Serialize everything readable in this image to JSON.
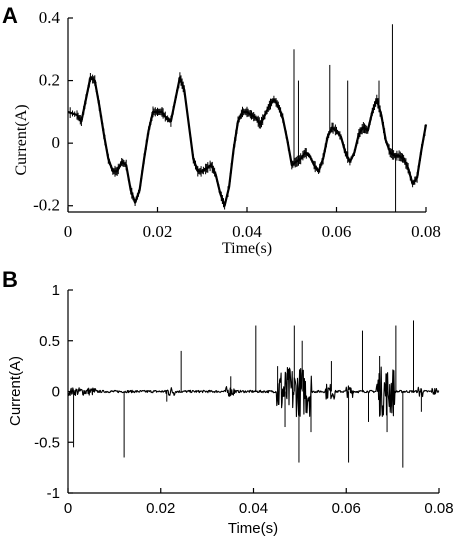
{
  "chart_data": [
    {
      "panel": "A",
      "type": "line",
      "xlabel": "Time(s)",
      "ylabel": "Current(A)",
      "xlim": [
        0,
        0.08
      ],
      "ylim": [
        -0.22,
        0.4
      ],
      "xticks": [
        0,
        0.02,
        0.04,
        0.06,
        0.08
      ],
      "xtick_labels": [
        "0",
        "0.02",
        "0.04",
        "0.06",
        "0.08"
      ],
      "yticks": [
        -0.2,
        0,
        0.2,
        0.4
      ],
      "ytick_labels": [
        "-0.2",
        "0",
        "0.2",
        "0.4"
      ],
      "grid": false,
      "series": [
        {
          "x": [
            0,
            0.002,
            0.003,
            0.004,
            0.005,
            0.006,
            0.007,
            0.008,
            0.009,
            0.01,
            0.011,
            0.012,
            0.013,
            0.014,
            0.015,
            0.016,
            0.017,
            0.018,
            0.019,
            0.02,
            0.021,
            0.022,
            0.023,
            0.024,
            0.025,
            0.026,
            0.027,
            0.028,
            0.029,
            0.03,
            0.031,
            0.032,
            0.033,
            0.034,
            0.035,
            0.036,
            0.037,
            0.038,
            0.039,
            0.04,
            0.041,
            0.042,
            0.043,
            0.044,
            0.045,
            0.046,
            0.047,
            0.048,
            0.049,
            0.05,
            0.051,
            0.052,
            0.053,
            0.054,
            0.055,
            0.056,
            0.057,
            0.058,
            0.059,
            0.06,
            0.061,
            0.062,
            0.063,
            0.064,
            0.065,
            0.066,
            0.067,
            0.068,
            0.069,
            0.07,
            0.071,
            0.072,
            0.073,
            0.074,
            0.075,
            0.076,
            0.077,
            0.078,
            0.079,
            0.08
          ],
          "y": [
            0.1,
            0.09,
            0.07,
            0.14,
            0.21,
            0.2,
            0.12,
            0.03,
            -0.05,
            -0.09,
            -0.09,
            -0.06,
            -0.07,
            -0.15,
            -0.19,
            -0.15,
            -0.05,
            0.04,
            0.1,
            0.1,
            0.1,
            0.08,
            0.07,
            0.14,
            0.21,
            0.17,
            0.06,
            -0.05,
            -0.09,
            -0.09,
            -0.08,
            -0.07,
            -0.1,
            -0.16,
            -0.2,
            -0.14,
            -0.02,
            0.07,
            0.1,
            0.1,
            0.09,
            0.08,
            0.06,
            0.09,
            0.12,
            0.14,
            0.12,
            0.08,
            0.01,
            -0.07,
            -0.06,
            -0.05,
            -0.03,
            -0.04,
            -0.07,
            -0.09,
            -0.05,
            0.02,
            0.05,
            0.04,
            0.02,
            -0.03,
            -0.06,
            -0.03,
            0.03,
            0.05,
            0.04,
            0.1,
            0.14,
            0.09,
            0.01,
            -0.03,
            -0.04,
            -0.04,
            -0.05,
            -0.08,
            -0.13,
            -0.11,
            -0.02,
            0.06
          ]
        }
      ],
      "spikes": [
        {
          "x": 0.0505,
          "y": 0.3
        },
        {
          "x": 0.0515,
          "y": 0.2
        },
        {
          "x": 0.0585,
          "y": 0.25
        },
        {
          "x": 0.0625,
          "y": 0.2
        },
        {
          "x": 0.0695,
          "y": 0.2
        },
        {
          "x": 0.0725,
          "y": 0.38
        },
        {
          "x": 0.0732,
          "y": -0.22
        }
      ]
    },
    {
      "panel": "B",
      "type": "line",
      "xlabel": "Time(s)",
      "ylabel": "Current(A)",
      "xlim": [
        0,
        0.08
      ],
      "ylim": [
        -1,
        1
      ],
      "xticks": [
        0,
        0.02,
        0.04,
        0.06,
        0.08
      ],
      "xtick_labels": [
        "0",
        "0.02",
        "0.04",
        "0.06",
        "0.08"
      ],
      "yticks": [
        -1,
        -0.5,
        0,
        0.5,
        1
      ],
      "ytick_labels": [
        "-1",
        "-0.5",
        "0",
        "0.5",
        "1"
      ],
      "grid": false,
      "spikes": [
        {
          "x": 0.0012,
          "y": -0.55
        },
        {
          "x": 0.0121,
          "y": -0.65
        },
        {
          "x": 0.0213,
          "y": -0.1
        },
        {
          "x": 0.0244,
          "y": 0.4
        },
        {
          "x": 0.0351,
          "y": 0.15
        },
        {
          "x": 0.0405,
          "y": 0.65
        },
        {
          "x": 0.0452,
          "y": 0.25
        },
        {
          "x": 0.0468,
          "y": -0.35
        },
        {
          "x": 0.0488,
          "y": 0.65
        },
        {
          "x": 0.0498,
          "y": -0.7
        },
        {
          "x": 0.0505,
          "y": 0.5
        },
        {
          "x": 0.0524,
          "y": -0.4
        },
        {
          "x": 0.0568,
          "y": 0.3
        },
        {
          "x": 0.0605,
          "y": -0.7
        },
        {
          "x": 0.0635,
          "y": 0.6
        },
        {
          "x": 0.0648,
          "y": -0.3
        },
        {
          "x": 0.0672,
          "y": 0.35
        },
        {
          "x": 0.0688,
          "y": -0.4
        },
        {
          "x": 0.0707,
          "y": 0.65
        },
        {
          "x": 0.0722,
          "y": -0.75
        },
        {
          "x": 0.0745,
          "y": 0.7
        },
        {
          "x": 0.0762,
          "y": -0.2
        }
      ],
      "bursts": [
        {
          "x0": 0,
          "x1": 0.006,
          "amp": 0.04
        },
        {
          "x0": 0.021,
          "x1": 0.023,
          "amp": 0.05
        },
        {
          "x0": 0.034,
          "x1": 0.036,
          "amp": 0.05
        },
        {
          "x0": 0.045,
          "x1": 0.0525,
          "amp": 0.25
        },
        {
          "x0": 0.0555,
          "x1": 0.0575,
          "amp": 0.08
        },
        {
          "x0": 0.06,
          "x1": 0.0615,
          "amp": 0.06
        },
        {
          "x0": 0.0665,
          "x1": 0.0705,
          "amp": 0.25
        },
        {
          "x0": 0.0755,
          "x1": 0.0765,
          "amp": 0.06
        },
        {
          "x0": 0.0785,
          "x1": 0.0795,
          "amp": 0.04
        }
      ]
    }
  ],
  "panel_labels": [
    "A",
    "B"
  ]
}
